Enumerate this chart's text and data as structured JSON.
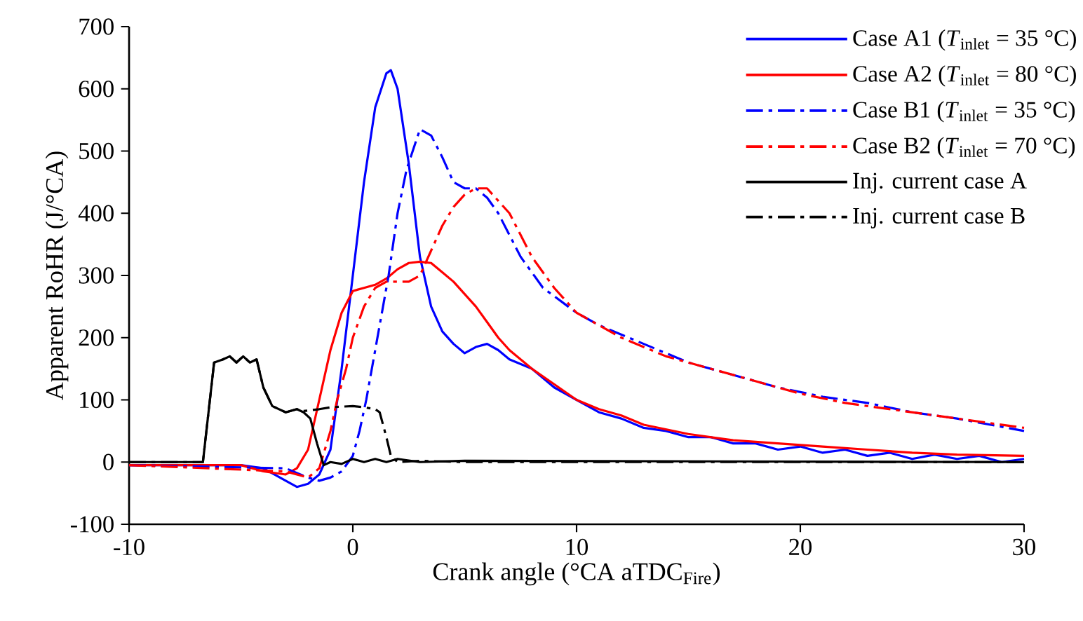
{
  "chart_data": {
    "type": "line",
    "xlabel": "Crank angle (°CA aTDC$_{Fire}$)",
    "ylabel": "Apparent RoHR (J/°CA)",
    "xlim": [
      -10,
      30
    ],
    "xticks": [
      -10,
      0,
      10,
      20,
      30
    ],
    "ylim": [
      -100,
      700
    ],
    "yticks": [
      -100,
      0,
      100,
      200,
      300,
      400,
      500,
      600,
      700
    ],
    "grid": false,
    "legend": "top right",
    "series": [
      {
        "name": "Case A1 (*T*$_{inlet}$ = 35 °C)",
        "color": "#0000ff",
        "line_style": "solid",
        "x": [
          -10,
          -5,
          -4,
          -3,
          -2.5,
          -2,
          -1.5,
          -1,
          -0.5,
          0,
          0.5,
          1,
          1.5,
          1.7,
          2,
          2.5,
          3,
          3.5,
          4,
          4.5,
          5,
          5.5,
          6,
          6.5,
          7,
          8,
          9,
          10,
          11,
          12,
          13,
          14,
          15,
          16,
          17,
          18,
          19,
          20,
          21,
          22,
          23,
          24,
          25,
          26,
          27,
          28,
          29,
          30
        ],
        "values": [
          -5,
          -5,
          -10,
          -30,
          -40,
          -35,
          -20,
          20,
          150,
          300,
          450,
          570,
          625,
          630,
          600,
          480,
          330,
          250,
          210,
          190,
          175,
          185,
          190,
          180,
          165,
          150,
          120,
          100,
          80,
          70,
          55,
          50,
          40,
          40,
          30,
          30,
          20,
          25,
          15,
          20,
          10,
          15,
          5,
          12,
          5,
          10,
          0,
          5
        ]
      },
      {
        "name": "Case A2 (*T*$_{inlet}$ = 80 °C)",
        "color": "#ff0000",
        "line_style": "solid",
        "x": [
          -10,
          -5,
          -4,
          -3,
          -2.5,
          -2,
          -1.5,
          -1,
          -0.5,
          0,
          0.5,
          1,
          1.5,
          2,
          2.5,
          3,
          3.5,
          4,
          4.5,
          5,
          5.5,
          6,
          6.5,
          7,
          8,
          9,
          10,
          11,
          12,
          13,
          15,
          17,
          19,
          21,
          23,
          25,
          27,
          30
        ],
        "values": [
          -5,
          -5,
          -15,
          -20,
          -10,
          20,
          100,
          180,
          240,
          275,
          280,
          285,
          295,
          310,
          320,
          322,
          320,
          305,
          290,
          270,
          250,
          225,
          200,
          180,
          150,
          125,
          100,
          85,
          75,
          60,
          45,
          35,
          30,
          25,
          20,
          15,
          12,
          10
        ]
      },
      {
        "name": "Case B1 (*T*$_{inlet}$ = 35 °C)",
        "color": "#0000ff",
        "line_style": "dashdot",
        "x": [
          -10,
          -3,
          -2,
          -1.5,
          -1,
          -0.5,
          0,
          0.3,
          0.6,
          1,
          1.6,
          2,
          2.4,
          3,
          3.5,
          4,
          4.5,
          5,
          5.5,
          6,
          6.5,
          7.5,
          8.5,
          10,
          11,
          13,
          15,
          17,
          19,
          21,
          23,
          25,
          27,
          30
        ],
        "values": [
          -5,
          -10,
          -25,
          -30,
          -25,
          -15,
          10,
          50,
          100,
          180,
          300,
          400,
          470,
          535,
          525,
          490,
          450,
          440,
          440,
          425,
          400,
          330,
          280,
          240,
          220,
          190,
          160,
          140,
          120,
          105,
          95,
          80,
          70,
          50
        ]
      },
      {
        "name": "Case B2 (*T*$_{inlet}$ = 70 °C)",
        "color": "#ff0000",
        "line_style": "dashdot",
        "x": [
          -10,
          -3,
          -2,
          -1.5,
          -1,
          -0.7,
          -0.3,
          0,
          0.5,
          1,
          1.5,
          2,
          2.5,
          3,
          3.5,
          4,
          4.5,
          5,
          5.5,
          6,
          7,
          8,
          9,
          10,
          12,
          14,
          16,
          18,
          20,
          22,
          24,
          26,
          28,
          30
        ],
        "values": [
          -5,
          -15,
          -25,
          -10,
          50,
          100,
          150,
          200,
          250,
          280,
          290,
          290,
          290,
          300,
          340,
          380,
          410,
          430,
          440,
          440,
          400,
          330,
          280,
          240,
          200,
          170,
          150,
          130,
          110,
          95,
          85,
          75,
          65,
          55
        ]
      },
      {
        "name": "Inj. current case A",
        "color": "#000000",
        "line_style": "solid",
        "x": [
          -10,
          -6.7,
          -6.2,
          -5.8,
          -5.5,
          -5.2,
          -4.9,
          -4.6,
          -4.3,
          -4,
          -3.6,
          -3,
          -2.5,
          -2.2,
          -1.9,
          -1.6,
          -1.3,
          -1,
          -0.5,
          0,
          0.5,
          1,
          1.5,
          2,
          3,
          5,
          30
        ],
        "values": [
          0,
          0,
          160,
          165,
          170,
          160,
          170,
          160,
          165,
          120,
          90,
          80,
          85,
          80,
          70,
          30,
          -5,
          0,
          -3,
          5,
          0,
          5,
          0,
          5,
          0,
          2,
          0
        ]
      },
      {
        "name": "Inj. current case B",
        "color": "#000000",
        "line_style": "dashdot",
        "x": [
          -10,
          -6.7,
          -6.2,
          -5.8,
          -5.5,
          -5.2,
          -4.9,
          -4.6,
          -4.3,
          -4,
          -3.6,
          -3,
          -2.5,
          -2.2,
          -1.5,
          -1,
          0,
          0.5,
          1,
          1.2,
          1.5,
          1.7,
          2,
          3,
          5,
          30
        ],
        "values": [
          0,
          0,
          160,
          165,
          170,
          160,
          170,
          160,
          165,
          120,
          90,
          80,
          85,
          82,
          85,
          88,
          90,
          88,
          85,
          80,
          40,
          10,
          0,
          2,
          0,
          0
        ]
      }
    ]
  }
}
